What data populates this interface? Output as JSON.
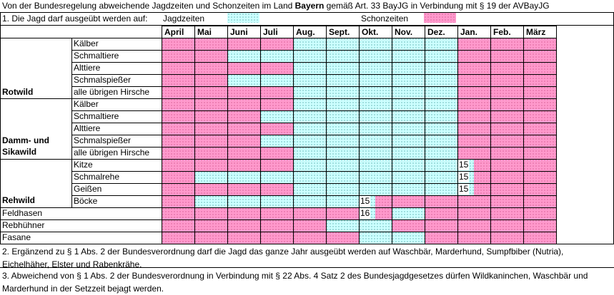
{
  "header": {
    "title_pre": "Von der Bundesregelung abweichende Jagdzeiten und Schonzeiten im Land ",
    "title_bold": "Bayern",
    "title_post": " gemäß Art. 33 BayJG in Verbindung mit § 19 der AVBayJG",
    "line1": "1. Die Jagd darf ausgeübt werden auf:",
    "legend_hunting": "Jagdzeiten",
    "legend_closed": "Schonzeiten"
  },
  "colors": {
    "hunting": "#ccffff",
    "closed": "#ff99cc"
  },
  "months": [
    "April",
    "Mai",
    "Juni",
    "Juli",
    "Aug.",
    "Sept.",
    "Okt.",
    "Nov.",
    "Dez.",
    "Jan.",
    "Feb.",
    "März"
  ],
  "groups": {
    "rotwild": "Rotwild",
    "damm_line1": "Damm- und",
    "damm_line2": "Sikawild",
    "rehwild": "Rehwild"
  },
  "rows": [
    {
      "label": "Kälber",
      "pattern": "PPPPJJJJJPPP"
    },
    {
      "label": "Schmaltiere",
      "pattern": "PPJJJJJJJPPP"
    },
    {
      "label": "Alttiere",
      "pattern": "PPPPJJJJJPPP"
    },
    {
      "label": "Schmalspießer",
      "pattern": "PPJJJJJJJPPP"
    },
    {
      "label": "alle übrigen Hirsche",
      "pattern": "PPPPJJJJJPPP"
    },
    {
      "label": "Kälber",
      "pattern": "PPPPJJJJJPPP"
    },
    {
      "label": "Schmaltiere",
      "pattern": "PPPJJJJJJPPP"
    },
    {
      "label": "Alttiere",
      "pattern": "PPPPJJJJJPPP"
    },
    {
      "label": "Schmalspießer",
      "pattern": "PPPJJJJJJPPP"
    },
    {
      "label": "alle übrigen Hirsche",
      "pattern": "PPPPJJJJJPPP"
    },
    {
      "label": "Kitze",
      "pattern": "PPPPJJJJJHPP",
      "note": "15"
    },
    {
      "label": "Schmalrehe",
      "pattern": "PJJJJJJJJHPP",
      "note": "15"
    },
    {
      "label": "Geißen",
      "pattern": "PPPPJJJJJHPP",
      "note": "15"
    },
    {
      "label": "Böcke",
      "pattern": "PJJJJJHPPPPP",
      "note": "15"
    },
    {
      "label": "Feldhasen",
      "pattern": "PPPPPPHJPPPP",
      "note": "16"
    },
    {
      "label": "Rebhühner",
      "pattern": "PPPPPJJPPPPP"
    },
    {
      "label": "Fasane",
      "pattern": "PPPPPPJJPPPP"
    }
  ],
  "notes": {
    "n2": "2. Ergänzend zu § 1 Abs. 2 der Bundesverordnung darf die Jagd das ganze Jahr ausgeübt werden auf Waschbär, Marderhund, Sumpfbiber (Nutria), Eichelhäher, Elster und Rabenkrähe.",
    "n3": "3. Abweichend von § 1 Abs. 2 der Bundesverordnung in Verbindung mit § 22 Abs. 4 Satz 2 des Bundesjagdgesetzes dürfen Wildkaninchen, Waschbär und Marderhund in der Setzzeit bejagt werden."
  }
}
